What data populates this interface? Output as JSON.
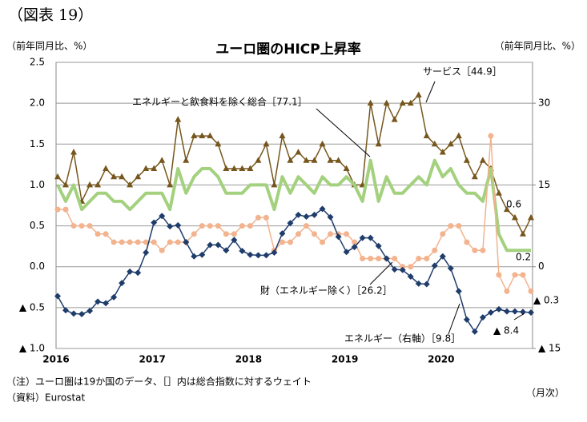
{
  "chart_data": {
    "type": "line",
    "header": "（図表 19）",
    "title": "ユーロ圏のHICP上昇率",
    "ylabel": "（前年同月比、%）",
    "y2label": "（前年同月比、%）",
    "xlabel": "（月次）",
    "note": "（注）ユーロ圏は19か国のデータ、［］内は総合指数に対するウェイト",
    "source": "（資料）Eurostat",
    "categories": [
      "2016",
      null,
      null,
      null,
      null,
      null,
      null,
      null,
      null,
      null,
      null,
      null,
      "2017",
      null,
      null,
      null,
      null,
      null,
      null,
      null,
      null,
      null,
      null,
      null,
      "2018",
      null,
      null,
      null,
      null,
      null,
      null,
      null,
      null,
      null,
      null,
      null,
      "2019",
      null,
      null,
      null,
      null,
      null,
      null,
      null,
      null,
      null,
      null,
      null,
      "2020",
      null,
      null,
      null,
      null,
      null,
      null,
      null,
      null,
      null,
      null,
      null
    ],
    "ylim": [
      -1.0,
      2.5
    ],
    "yticks": [
      {
        "value": 2.0,
        "label": "2.0"
      },
      2.5,
      1.5,
      {
        "value": 1.0,
        "label": "1.0"
      },
      0.5,
      {
        "value": 0,
        "label": "0.0"
      },
      {
        "value": -0.5,
        "label": "▲ 0.5"
      },
      {
        "value": -1.0,
        "label": "▲ 1.0"
      }
    ],
    "y2lim": [
      -15,
      37.5
    ],
    "y2ticks": [
      30,
      15,
      0,
      {
        "value": -15,
        "label": "▲ 15"
      }
    ],
    "grid": true,
    "series": [
      {
        "name": "サービス［44.9］",
        "color": "#76561c",
        "marker": "triangle",
        "values": [
          1.1,
          1.0,
          1.4,
          0.8,
          1.0,
          1.0,
          1.2,
          1.1,
          1.1,
          1.0,
          1.1,
          1.2,
          1.2,
          1.3,
          1.0,
          1.8,
          1.3,
          1.6,
          1.6,
          1.6,
          1.5,
          1.2,
          1.2,
          1.2,
          1.2,
          1.3,
          1.5,
          1.0,
          1.6,
          1.3,
          1.4,
          1.3,
          1.3,
          1.5,
          1.3,
          1.3,
          1.2,
          1.0,
          1.0,
          2.0,
          1.5,
          2.0,
          1.8,
          2.0,
          2.0,
          2.1,
          1.6,
          1.5,
          1.4,
          1.5,
          1.6,
          1.3,
          1.1,
          1.3,
          1.2,
          0.9,
          0.7,
          0.6,
          0.4,
          0.6
        ],
        "value_labels": [
          null,
          null,
          null,
          null,
          null,
          null,
          null,
          null,
          null,
          null,
          null,
          null,
          null,
          null,
          null,
          null,
          null,
          null,
          null,
          null,
          null,
          null,
          null,
          null,
          null,
          null,
          null,
          null,
          null,
          null,
          null,
          null,
          null,
          null,
          null,
          null,
          null,
          null,
          null,
          null,
          null,
          null,
          null,
          null,
          null,
          null,
          null,
          null,
          null,
          null,
          null,
          null,
          null,
          null,
          null,
          null,
          null,
          null,
          null,
          "0.6"
        ]
      },
      {
        "name": "エネルギーと飲食料を除く総合［77.1］",
        "color": "#a3d17e",
        "marker": "none",
        "values": [
          1.0,
          0.8,
          1.0,
          0.7,
          0.8,
          0.9,
          0.9,
          0.8,
          0.8,
          0.7,
          0.8,
          0.9,
          0.9,
          0.9,
          0.7,
          1.2,
          0.9,
          1.1,
          1.2,
          1.2,
          1.1,
          0.9,
          0.9,
          0.9,
          1.0,
          1.0,
          1.0,
          0.7,
          1.1,
          0.9,
          1.1,
          1.0,
          0.9,
          1.1,
          1.0,
          1.0,
          1.1,
          1.0,
          0.8,
          1.3,
          0.8,
          1.1,
          0.9,
          0.9,
          1.0,
          1.1,
          1.0,
          1.3,
          1.1,
          1.2,
          1.0,
          0.9,
          0.9,
          0.8,
          1.2,
          0.4,
          0.2,
          0.2,
          0.2,
          0.2
        ],
        "value_labels": [
          null,
          null,
          null,
          null,
          null,
          null,
          null,
          null,
          null,
          null,
          null,
          null,
          null,
          null,
          null,
          null,
          null,
          null,
          null,
          null,
          null,
          null,
          null,
          null,
          null,
          null,
          null,
          null,
          null,
          null,
          null,
          null,
          null,
          null,
          null,
          null,
          null,
          null,
          null,
          null,
          null,
          null,
          null,
          null,
          null,
          null,
          null,
          null,
          null,
          null,
          null,
          null,
          null,
          null,
          null,
          null,
          null,
          null,
          null,
          "0.2"
        ]
      },
      {
        "name": "財（エネルギー除く）［26.2］",
        "color": "#f2b38e",
        "marker": "circle",
        "values": [
          0.7,
          0.7,
          0.5,
          0.5,
          0.5,
          0.4,
          0.4,
          0.3,
          0.3,
          0.3,
          0.3,
          0.3,
          0.3,
          0.2,
          0.3,
          0.3,
          0.3,
          0.4,
          0.5,
          0.5,
          0.5,
          0.4,
          0.4,
          0.5,
          0.5,
          0.6,
          0.6,
          0.2,
          0.3,
          0.3,
          0.4,
          0.5,
          0.4,
          0.3,
          0.4,
          0.4,
          0.4,
          0.3,
          0.1,
          0.1,
          0.1,
          0.1,
          0.1,
          0.0,
          0.0,
          0.1,
          0.1,
          0.2,
          0.4,
          0.5,
          0.5,
          0.3,
          0.2,
          0.2,
          1.6,
          -0.1,
          -0.3,
          -0.1,
          -0.1,
          -0.3
        ],
        "value_labels": [
          null,
          null,
          null,
          null,
          null,
          null,
          null,
          null,
          null,
          null,
          null,
          null,
          null,
          null,
          null,
          null,
          null,
          null,
          null,
          null,
          null,
          null,
          null,
          null,
          null,
          null,
          null,
          null,
          null,
          null,
          null,
          null,
          null,
          null,
          null,
          null,
          null,
          null,
          null,
          null,
          null,
          null,
          null,
          null,
          null,
          null,
          null,
          null,
          null,
          null,
          null,
          null,
          null,
          null,
          null,
          null,
          null,
          null,
          null,
          "▲ 0.3"
        ]
      },
      {
        "name": "エネルギー（右軸）［9.8］",
        "color": "#1f3d6b",
        "marker": "diamond",
        "axis": "y2",
        "values": [
          -5.4,
          -8.0,
          -8.6,
          -8.7,
          -8.1,
          -6.4,
          -6.7,
          -5.6,
          -3.0,
          -0.9,
          -1.1,
          2.6,
          8.1,
          9.3,
          7.4,
          7.6,
          4.5,
          1.9,
          2.2,
          4.0,
          4.0,
          3.0,
          4.9,
          2.9,
          2.2,
          2.1,
          2.1,
          2.6,
          6.1,
          8.0,
          9.5,
          9.2,
          9.5,
          10.6,
          9.1,
          5.5,
          2.7,
          3.6,
          5.3,
          5.3,
          3.8,
          1.5,
          -0.5,
          -0.6,
          -1.8,
          -3.1,
          -3.2,
          0.2,
          1.9,
          -0.3,
          -4.5,
          -9.7,
          -11.9,
          -9.3,
          -8.4,
          -7.8,
          -8.2,
          -8.2,
          -8.3,
          -8.4
        ],
        "value_labels": [
          null,
          null,
          null,
          null,
          null,
          null,
          null,
          null,
          null,
          null,
          null,
          null,
          null,
          null,
          null,
          null,
          null,
          null,
          null,
          null,
          null,
          null,
          null,
          null,
          null,
          null,
          null,
          null,
          null,
          null,
          null,
          null,
          null,
          null,
          null,
          null,
          null,
          null,
          null,
          null,
          null,
          null,
          null,
          null,
          null,
          null,
          null,
          null,
          null,
          null,
          null,
          null,
          null,
          null,
          null,
          null,
          null,
          null,
          null,
          "▲ 8.4"
        ]
      }
    ]
  }
}
